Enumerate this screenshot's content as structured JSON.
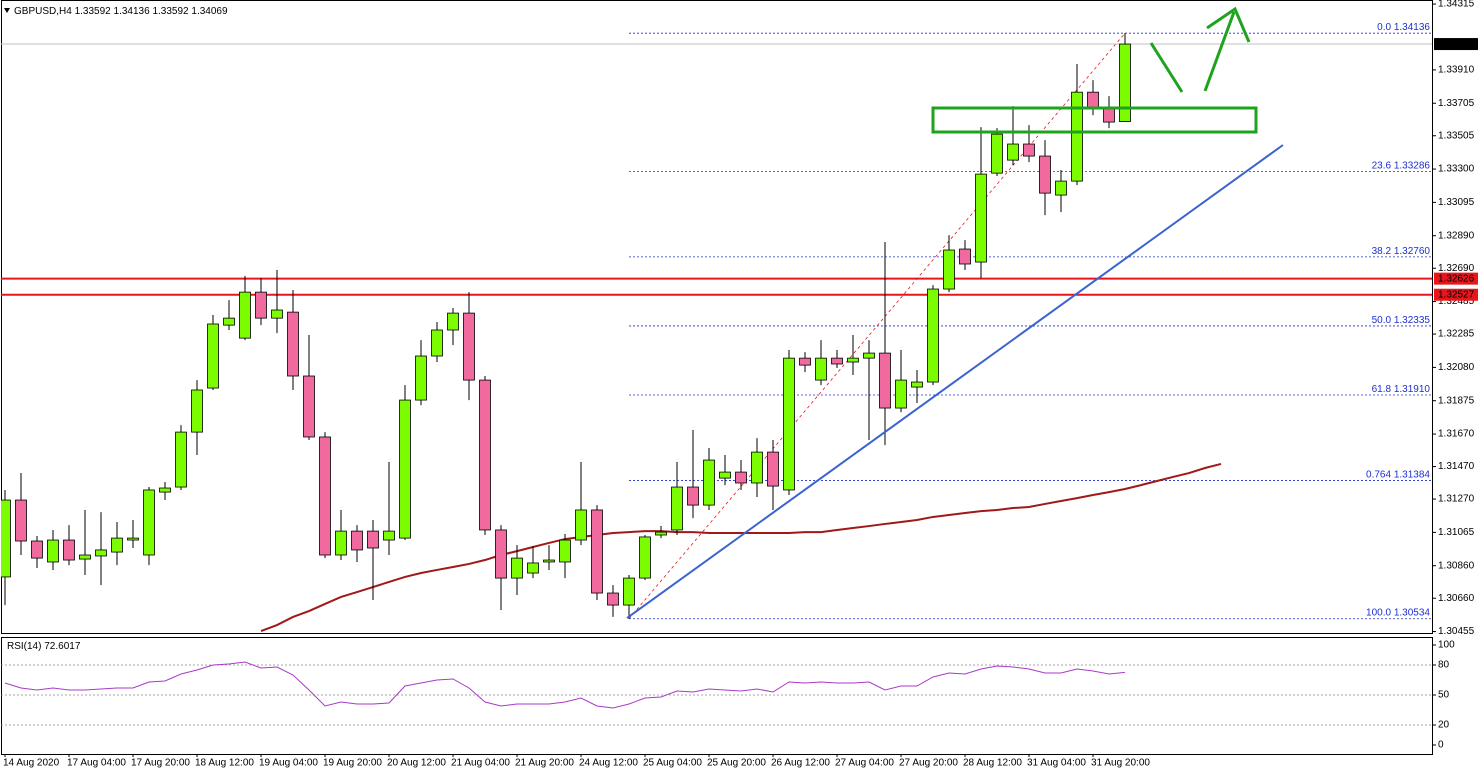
{
  "chart_data": {
    "type": "candlestick",
    "symbol": "GBPUSD,H4",
    "up_color": "#7cfc00",
    "down_color": "#f06aa0",
    "categories": [
      "14 Aug 2020",
      null,
      null,
      null,
      "17 Aug 04:00",
      null,
      null,
      null,
      "17 Aug 20:00",
      null,
      null,
      null,
      "18 Aug 12:00",
      null,
      null,
      null,
      "19 Aug 04:00",
      null,
      null,
      null,
      "19 Aug 20:00",
      null,
      null,
      null,
      "20 Aug 12:00",
      null,
      null,
      null,
      "21 Aug 04:00",
      null,
      null,
      null,
      "21 Aug 20:00",
      null,
      null,
      null,
      "24 Aug 12:00",
      null,
      null,
      null,
      "25 Aug 04:00",
      null,
      null,
      null,
      "25 Aug 20:00",
      null,
      null,
      null,
      "26 Aug 12:00",
      null,
      null,
      null,
      "27 Aug 04:00",
      null,
      null,
      null,
      "27 Aug 20:00",
      null,
      null,
      null,
      "28 Aug 12:00",
      null,
      null,
      null,
      "31 Aug 04:00",
      null,
      null,
      null,
      "31 Aug 20:00",
      null,
      null,
      null,
      null,
      null,
      null,
      null,
      null
    ],
    "open": [
      1.30791,
      1.31264,
      1.31012,
      1.30883,
      1.31018,
      1.30901,
      1.3092,
      1.30944,
      1.31018,
      1.30926,
      1.31313,
      1.31344,
      1.31682,
      1.31953,
      1.3234,
      1.3226,
      1.32543,
      1.32383,
      1.3242,
      1.32027,
      1.31652,
      1.30926,
      1.31073,
      1.31073,
      1.31018,
      1.3103,
      1.31879,
      1.3215,
      1.3231,
      1.32414,
      1.32002,
      1.3108,
      1.30784,
      1.30815,
      1.30883,
      1.30883,
      1.31018,
      1.31203,
      1.30692,
      1.30618,
      1.30784,
      1.31049,
      1.3108,
      1.31344,
      1.31233,
      1.31399,
      1.31436,
      1.31369,
      1.31559,
      1.31326,
      1.32137,
      1.32002,
      1.32137,
      1.32113,
      1.32137,
      1.32168,
      1.3183,
      1.31959,
      1.3199,
      1.32562,
      1.32808,
      1.32728,
      1.33275,
      1.33355,
      1.33454,
      1.3338,
      1.3314,
      1.33226,
      1.33773,
      1.33669,
      1.33592,
      null,
      null,
      null,
      null,
      null,
      null
    ],
    "high": [
      1.31326,
      1.3143,
      1.31043,
      1.3108,
      1.3111,
      1.31203,
      1.3119,
      1.31129,
      1.31141,
      1.31344,
      1.31375,
      1.31725,
      1.32002,
      1.32402,
      1.32494,
      1.32642,
      1.32629,
      1.32679,
      1.32556,
      1.32279,
      1.31682,
      1.31203,
      1.3111,
      1.31141,
      1.31498,
      1.31971,
      1.32248,
      1.32359,
      1.32445,
      1.32543,
      1.32027,
      1.3111,
      1.30987,
      1.30981,
      1.30987,
      1.31055,
      1.31498,
      1.31233,
      1.30741,
      1.30803,
      1.31049,
      1.31104,
      1.31498,
      1.31695,
      1.31584,
      1.31541,
      1.3151,
      1.31645,
      1.31633,
      1.32187,
      1.32174,
      1.32248,
      1.32187,
      1.32279,
      1.32248,
      1.32851,
      1.32187,
      1.32064,
      1.32586,
      1.32894,
      1.32863,
      1.33558,
      1.33552,
      1.33687,
      1.3357,
      1.33478,
      1.33294,
      1.33946,
      1.33847,
      1.33749,
      1.34136,
      null,
      null,
      null,
      null,
      null,
      null
    ],
    "low": [
      1.30618,
      1.30926,
      1.30846,
      1.30834,
      1.30864,
      1.30803,
      1.30741,
      1.30864,
      1.30969,
      1.30864,
      1.31264,
      1.31326,
      1.31541,
      1.31941,
      1.3231,
      1.32248,
      1.3234,
      1.32291,
      1.31941,
      1.31633,
      1.30907,
      1.30895,
      1.30883,
      1.30649,
      1.30926,
      1.31018,
      1.31848,
      1.32113,
      1.32217,
      1.31879,
      1.31049,
      1.30588,
      1.3068,
      1.30784,
      1.30834,
      1.30784,
      1.30987,
      1.30649,
      1.30545,
      1.30534,
      1.30772,
      1.3103,
      1.31049,
      1.31153,
      1.31203,
      1.31356,
      1.31326,
      1.31283,
      1.31203,
      1.31295,
      1.32051,
      1.31971,
      1.32076,
      1.32033,
      1.31633,
      1.31602,
      1.31805,
      1.31861,
      1.31971,
      1.32543,
      1.32679,
      1.32629,
      1.33257,
      1.33324,
      1.33343,
      1.33017,
      1.33035,
      1.33201,
      1.33632,
      1.33552,
      1.33592,
      null,
      null,
      null,
      null,
      null,
      null
    ],
    "close": [
      1.31264,
      1.31012,
      1.30907,
      1.31018,
      1.30895,
      1.30926,
      1.30957,
      1.3103,
      1.3103,
      1.31326,
      1.31338,
      1.31682,
      1.31941,
      1.32347,
      1.32383,
      1.32543,
      1.32383,
      1.32433,
      1.32027,
      1.31652,
      1.30926,
      1.31073,
      1.30957,
      1.30969,
      1.31073,
      1.31879,
      1.3215,
      1.3231,
      1.32414,
      1.32002,
      1.3108,
      1.30784,
      1.30907,
      1.30877,
      1.30895,
      1.31018,
      1.31203,
      1.30692,
      1.30618,
      1.30784,
      1.31037,
      1.31067,
      1.31344,
      1.31233,
      1.3151,
      1.31436,
      1.31369,
      1.31559,
      1.3135,
      1.32137,
      1.32094,
      1.32137,
      1.32101,
      1.32137,
      1.32168,
      1.3183,
      1.32002,
      1.3199,
      1.32562,
      1.32802,
      1.32716,
      1.33269,
      1.33515,
      1.33454,
      1.3338,
      1.33152,
      1.33226,
      1.33773,
      1.33681,
      1.33589,
      1.34069,
      null,
      null,
      null,
      null,
      null,
      null
    ],
    "ylim": [
      1.3044,
      1.3434
    ],
    "yticks": [
      1.34315,
      {
        "value": 1.3391,
        "label": "1.33910"
      },
      1.33705,
      1.33505,
      {
        "value": 1.333,
        "label": "1.33300"
      },
      1.33095,
      {
        "value": 1.3289,
        "label": "1.32890"
      },
      {
        "value": 1.3269,
        "label": "1.32690"
      },
      1.32485,
      1.32285,
      {
        "value": 1.3208,
        "label": "1.32080"
      },
      1.31875,
      {
        "value": 1.3167,
        "label": "1.31670"
      },
      {
        "value": 1.3147,
        "label": "1.31470"
      },
      {
        "value": 1.3127,
        "label": "1.31270"
      },
      1.31065,
      {
        "value": 1.3086,
        "label": "1.30860"
      },
      {
        "value": 1.3066,
        "label": "1.30660"
      },
      1.30455
    ],
    "ma": {
      "color": "#a01818",
      "values": [
        null,
        null,
        null,
        null,
        null,
        null,
        null,
        null,
        null,
        null,
        null,
        null,
        null,
        null,
        null,
        null,
        1.30458,
        1.30495,
        1.30545,
        1.30581,
        1.30625,
        1.30668,
        1.30698,
        1.30729,
        1.3076,
        1.30791,
        1.30815,
        1.30834,
        1.30852,
        1.30871,
        1.30895,
        1.30926,
        1.3095,
        1.30975,
        1.31,
        1.31024,
        1.31037,
        1.31049,
        1.31061,
        1.31067,
        1.31073,
        1.31073,
        1.31067,
        1.31067,
        1.31061,
        1.31061,
        1.31061,
        1.31061,
        1.31061,
        1.31061,
        1.31067,
        1.31067,
        1.3108,
        1.31092,
        1.31104,
        1.31117,
        1.31129,
        1.31141,
        1.3116,
        1.31172,
        1.31184,
        1.31196,
        1.31203,
        1.31215,
        1.31221,
        1.3124,
        1.31258,
        1.31276,
        1.31295,
        1.31313,
        1.31332,
        1.31356,
        1.31381,
        1.31406,
        1.3143,
        1.31461,
        1.31486
      ]
    },
    "resistance": {
      "color": "#e8161a",
      "values": [
        1.32626,
        1.32527
      ]
    },
    "fib": {
      "color": "#1c2fd0",
      "line_color": "#e8161a",
      "levels": [
        {
          "label": "0.0",
          "price": 1.34136
        },
        {
          "label": "23.6",
          "price": 1.33286
        },
        {
          "label": "38.2",
          "price": 1.3276,
          "price_label": "1.32760"
        },
        {
          "label": "50.0",
          "price": 1.32335
        },
        {
          "label": "61.8",
          "price": 1.3191,
          "price_label": "1.31910"
        },
        {
          "label": "0.764",
          "price": 1.31384
        },
        {
          "label": "100.0",
          "price": 1.30534
        }
      ]
    },
    "rsi": {
      "name": "RSI(14)",
      "color": "#a83ac8",
      "ylim": [
        -9,
        107
      ],
      "yticks": [
        100,
        80,
        50,
        20,
        0
      ],
      "values": [
        62,
        57,
        55,
        57,
        55,
        55,
        56,
        57,
        57,
        63,
        64,
        71,
        75,
        80,
        81,
        83,
        77,
        78,
        70,
        55,
        39,
        43,
        41,
        41,
        42,
        59,
        62,
        65,
        66,
        57,
        43,
        39,
        41,
        41,
        41,
        43,
        47,
        39,
        37,
        41,
        47,
        48,
        54,
        53,
        56,
        55,
        54,
        56,
        53,
        63,
        62,
        63,
        62,
        62,
        63,
        55,
        59,
        59,
        68,
        72,
        71,
        76,
        79,
        78,
        76,
        72,
        72,
        76,
        74,
        71,
        72.6017,
        null,
        null,
        null,
        null,
        null,
        null
      ]
    }
  }
}
